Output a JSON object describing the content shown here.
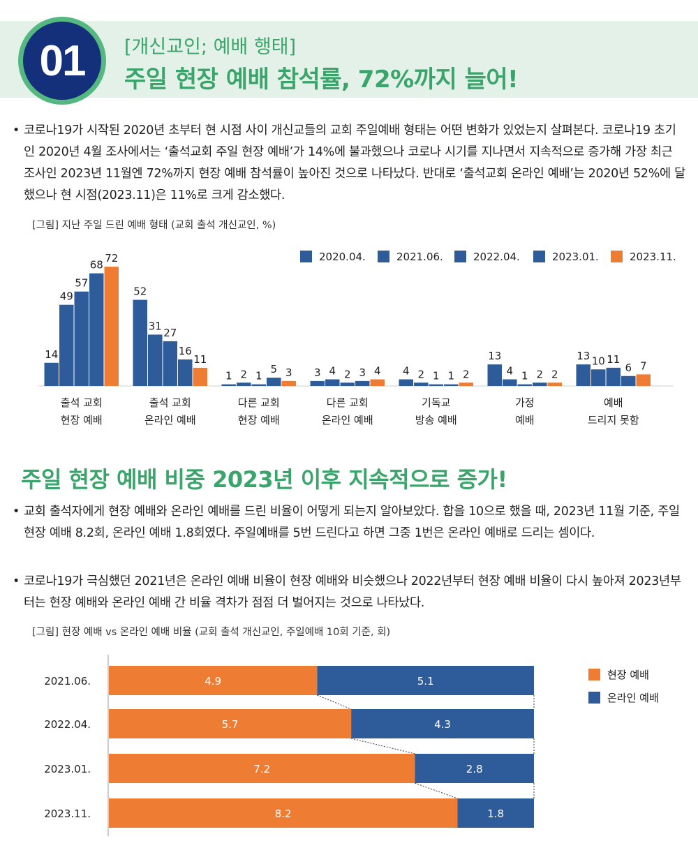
{
  "header": {
    "number": "01",
    "subtitle": "[개신교인; 예배 행태]",
    "title": "주일 현장 예배 참석률, 72%까지 늘어!"
  },
  "paragraph1": "코로나19가 시작된 2020년 초부터 현 시점 사이 개신교들의 교회 주일예배 형태는 어떤 변화가 있었는지 살펴본다. 코로나19 초기인 2020년 4월 조사에서는 ‘출석교회 주일 현장 예배’가 14%에 불과했으나 코로나 시기를 지나면서 지속적으로 증가해 가장 최근 조사인 2023년 11월엔 72%까지 현장 예배 참석률이 높아진 것으로 나타났다. 반대로 ‘출석교회 온라인 예배’는 2020년 52%에 달했으나 현 시점(2023.11)은 11%로 크게 감소했다.",
  "caption1": "[그림] 지난 주일 드린 예배 형태 (교회 출석 개신교인, %)",
  "section2_title": "주일 현장 예배 비중 2023년 이후 지속적으로 증가!",
  "paragraph2": "교회 출석자에게 현장 예배와 온라인 예배를 드린 비율이 어떻게 되는지 알아보았다. 합을 10으로 했을 때, 2023년 11월 기준, 주일 현장 예배 8.2회, 온라인 예배 1.8회였다. 주일예배를 5번 드린다고 하면 그중 1번은 온라인 예배로 드리는 셈이다.",
  "paragraph3": "코로나19가 극심했던 2021년은 온라인 예배 비율이 현장 예배와 비슷했으나 2022년부터 현장 예배 비율이 다시 높아져 2023년부터는 현장 예배와 온라인 예배 간 비율 격차가 점점 더 벌어지는 것으로 나타났다.",
  "caption2": "[그림] 현장 예배 vs 온라인 예배 비율 (교회 출석 개신교인, 주일예배 10회 기준, 회)",
  "colors": {
    "blue": "#2e5b9a",
    "orange": "#ee7c32",
    "green": "#3aa56b"
  },
  "chart_data": [
    {
      "type": "bar",
      "categories": [
        [
          "출석 교회",
          "현장 예배"
        ],
        [
          "출석 교회",
          "온라인 예배"
        ],
        [
          "다른 교회",
          "현장 예배"
        ],
        [
          "다른 교회",
          "온라인 예배"
        ],
        [
          "기독교",
          "방송 예배"
        ],
        [
          "가정",
          "예배"
        ],
        [
          "예배",
          "드리지 못함"
        ]
      ],
      "series": [
        {
          "name": "2020.04.",
          "values": [
            14,
            52,
            1,
            3,
            4,
            13,
            13
          ],
          "color": "#2e5b9a"
        },
        {
          "name": "2021.06.",
          "values": [
            49,
            31,
            2,
            4,
            2,
            4,
            10
          ],
          "color": "#2e5b9a"
        },
        {
          "name": "2022.04.",
          "values": [
            57,
            27,
            1,
            2,
            1,
            1,
            11
          ],
          "color": "#2e5b9a"
        },
        {
          "name": "2023.01.",
          "values": [
            68,
            16,
            5,
            3,
            1,
            2,
            6
          ],
          "color": "#2e5b9a"
        },
        {
          "name": "2023.11.",
          "values": [
            72,
            11,
            3,
            4,
            2,
            2,
            7
          ],
          "color": "#ee7c32"
        }
      ],
      "ylim": [
        0,
        75
      ],
      "legend": "top-right"
    },
    {
      "type": "bar",
      "orientation": "horizontal-stacked",
      "categories": [
        "2021.06.",
        "2022.04.",
        "2023.01.",
        "2023.11."
      ],
      "series": [
        {
          "name": "현장 예배",
          "values": [
            4.9,
            5.7,
            7.2,
            8.2
          ],
          "color": "#ee7c32"
        },
        {
          "name": "온라인 예배",
          "values": [
            5.1,
            4.3,
            2.8,
            1.8
          ],
          "color": "#2e5b9a"
        }
      ],
      "xlim": [
        0,
        10
      ],
      "legend": "right"
    }
  ]
}
